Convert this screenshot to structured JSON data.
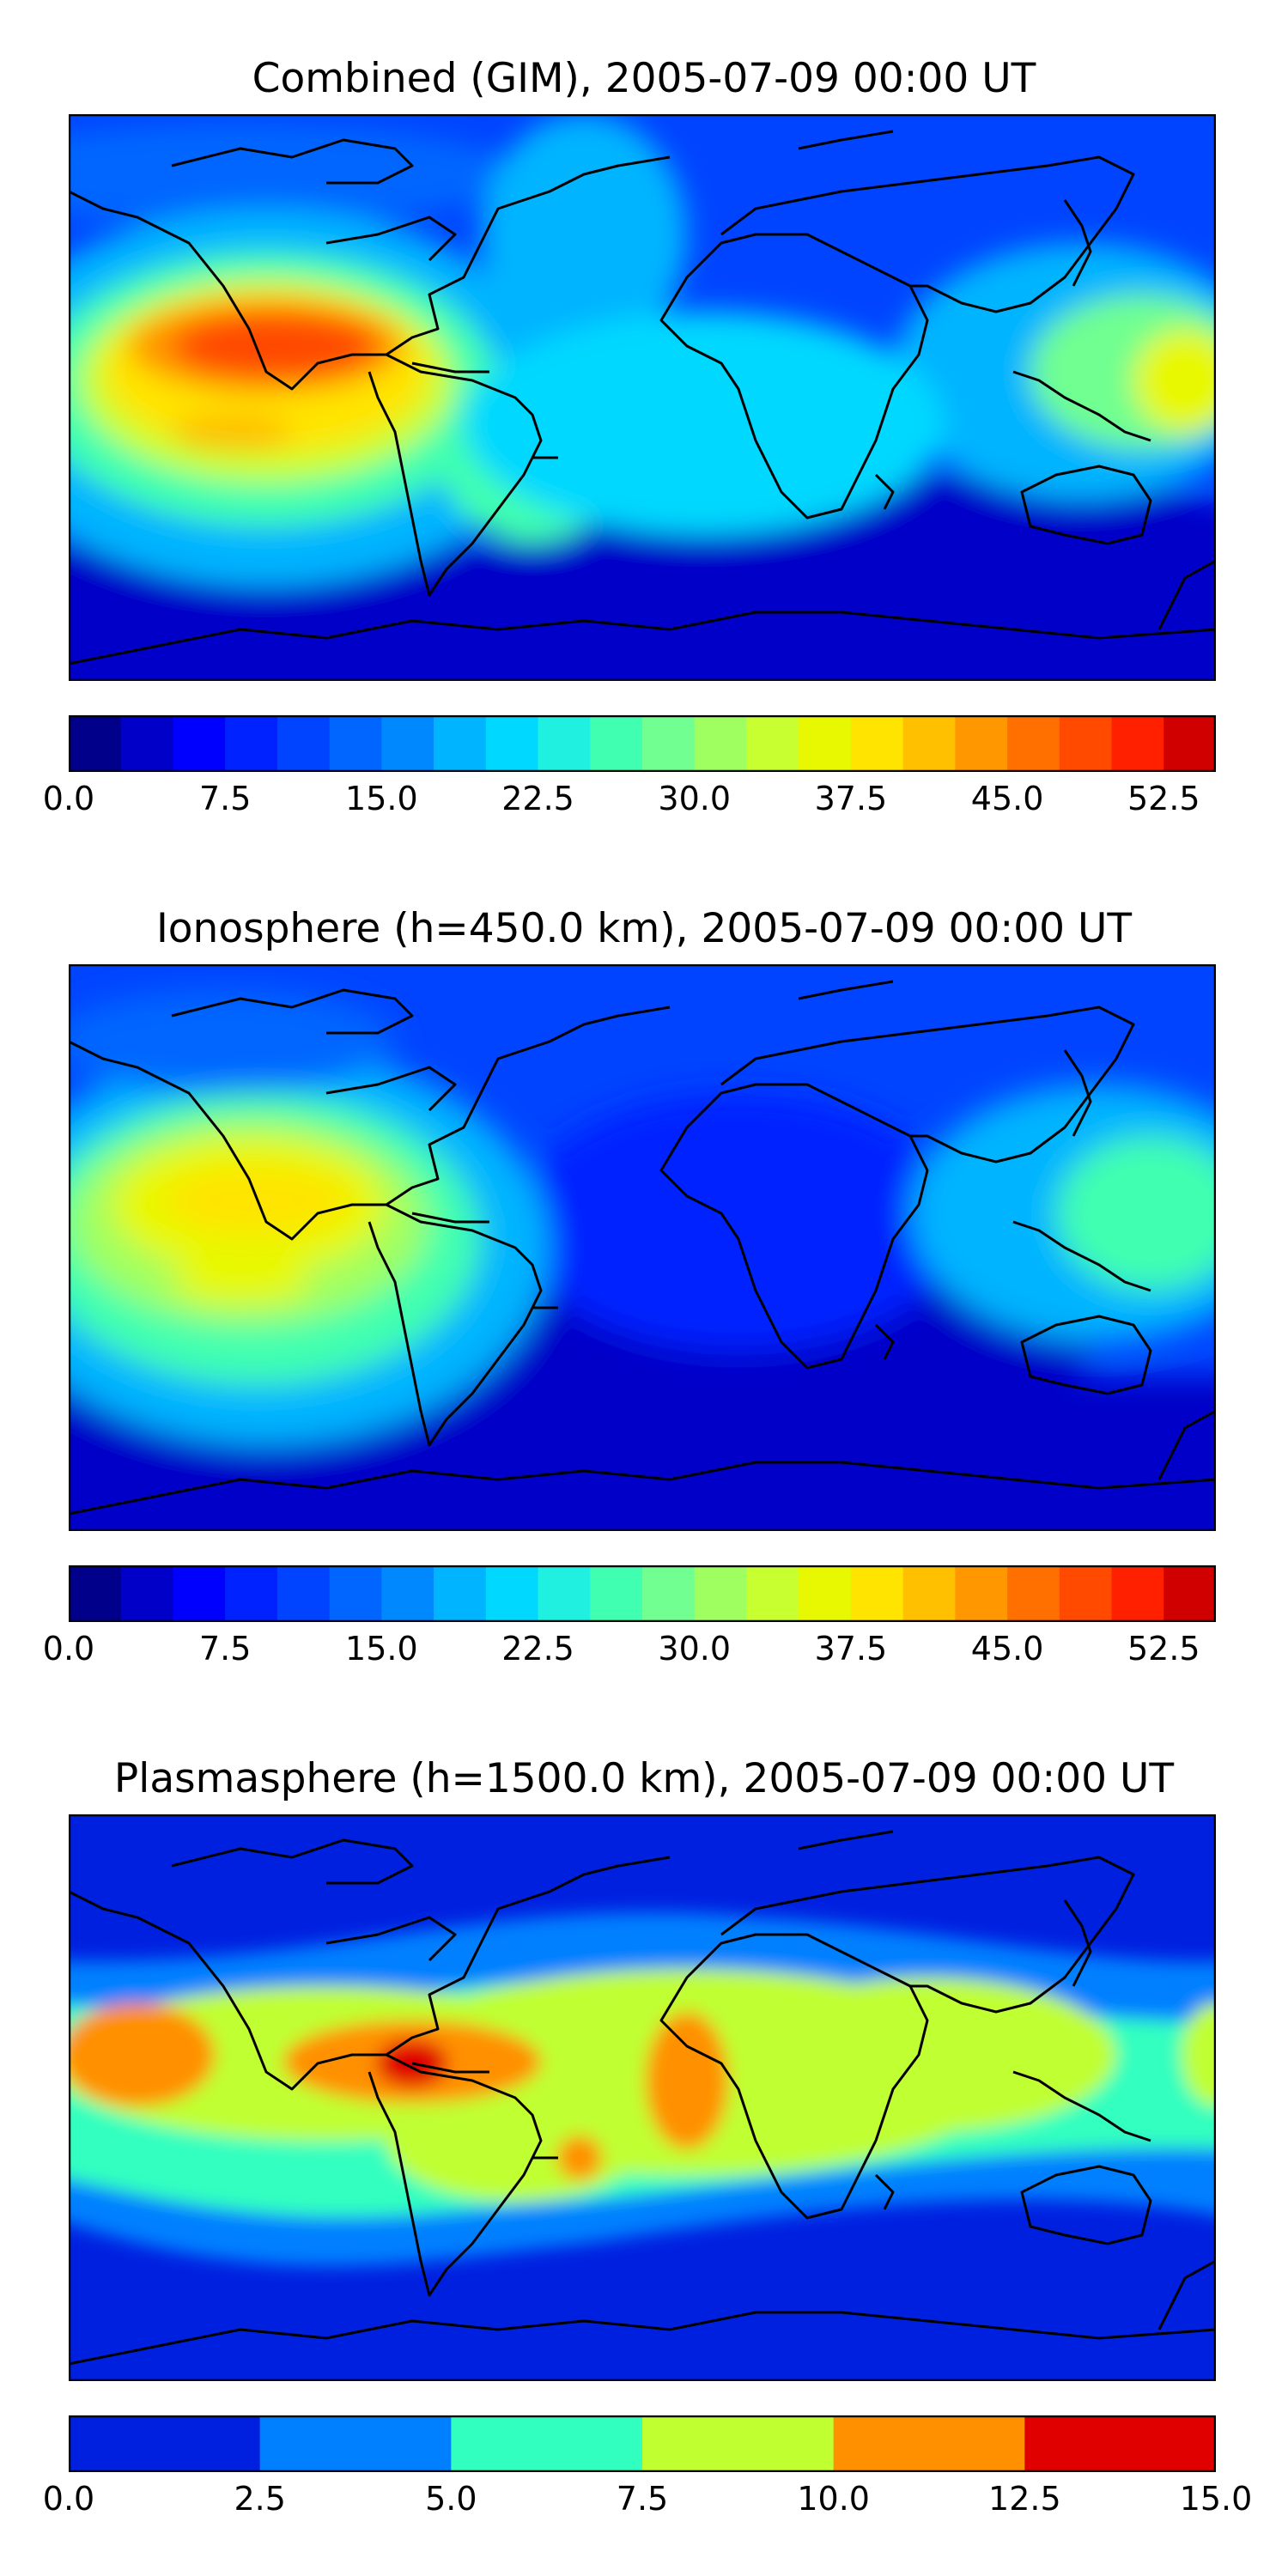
{
  "panels": [
    {
      "title": "Combined (GIM), 2005-07-09 00:00 UT",
      "colorbar": {
        "min": 0.0,
        "max": 55.0,
        "n_levels": 22,
        "ticks": [
          "0.0",
          "7.5",
          "15.0",
          "22.5",
          "30.0",
          "37.5",
          "45.0",
          "52.5"
        ],
        "tick_values": [
          0.0,
          7.5,
          15.0,
          22.5,
          30.0,
          37.5,
          45.0,
          52.5
        ],
        "colors": [
          "#00008b",
          "#0000c8",
          "#0000ff",
          "#0022ff",
          "#0044ff",
          "#0066ff",
          "#0088ff",
          "#00b4ff",
          "#00d8ff",
          "#20f0e0",
          "#40ffb0",
          "#70ff90",
          "#a0ff60",
          "#c8ff30",
          "#e8f800",
          "#ffe400",
          "#ffc000",
          "#ff9800",
          "#ff7000",
          "#ff4a00",
          "#ff2000",
          "#d00000"
        ]
      }
    },
    {
      "title": "Ionosphere  (h=450.0 km), 2005-07-09 00:00 UT",
      "colorbar": {
        "min": 0.0,
        "max": 55.0,
        "n_levels": 22,
        "ticks": [
          "0.0",
          "7.5",
          "15.0",
          "22.5",
          "30.0",
          "37.5",
          "45.0",
          "52.5"
        ],
        "tick_values": [
          0.0,
          7.5,
          15.0,
          22.5,
          30.0,
          37.5,
          45.0,
          52.5
        ],
        "colors": [
          "#00008b",
          "#0000c8",
          "#0000ff",
          "#0022ff",
          "#0044ff",
          "#0066ff",
          "#0088ff",
          "#00b4ff",
          "#00d8ff",
          "#20f0e0",
          "#40ffb0",
          "#70ff90",
          "#a0ff60",
          "#c8ff30",
          "#e8f800",
          "#ffe400",
          "#ffc000",
          "#ff9800",
          "#ff7000",
          "#ff4a00",
          "#ff2000",
          "#d00000"
        ]
      }
    },
    {
      "title": "Plasmasphere (h=1500.0 km), 2005-07-09 00:00 UT",
      "colorbar": {
        "min": 0.0,
        "max": 15.0,
        "n_levels": 6,
        "ticks": [
          "0.0",
          "2.5",
          "5.0",
          "7.5",
          "10.0",
          "12.5",
          "15.0"
        ],
        "tick_values": [
          0.0,
          2.5,
          5.0,
          7.5,
          10.0,
          12.5,
          15.0
        ],
        "colors": [
          "#0020e0",
          "#0080ff",
          "#30ffc0",
          "#c0ff30",
          "#ff9000",
          "#e00000"
        ]
      }
    }
  ]
}
